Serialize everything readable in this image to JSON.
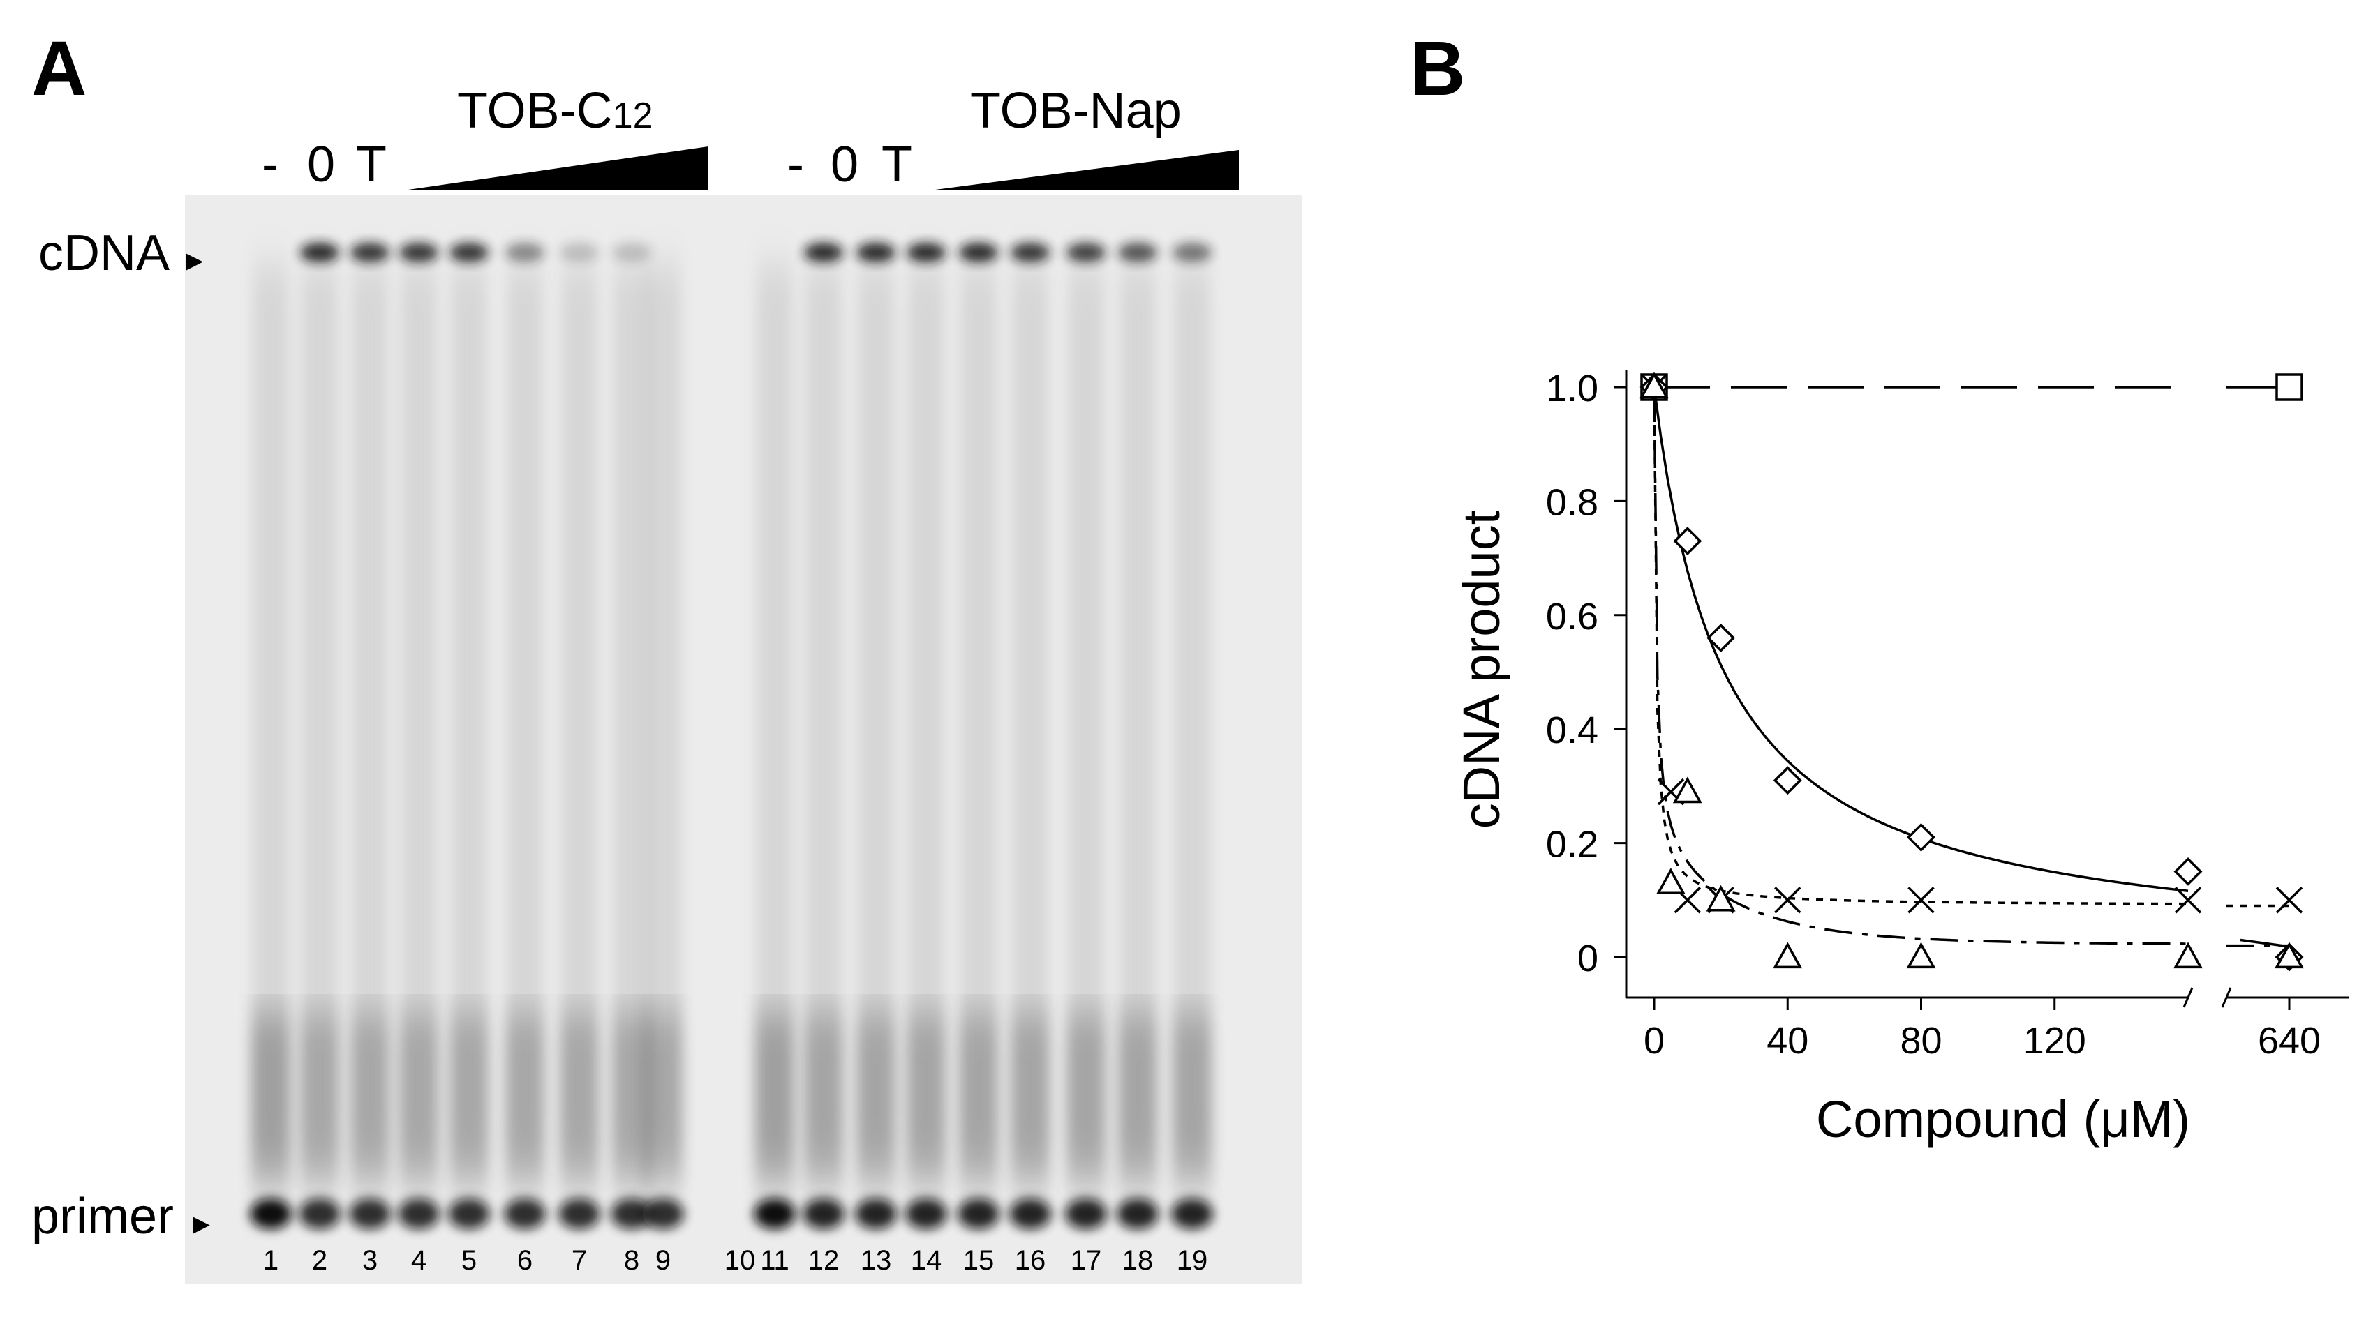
{
  "panel_a": {
    "label": "A",
    "groups": [
      {
        "title_main": "TOB-C",
        "title_sub": "12",
        "controls": [
          "-",
          "0",
          "T"
        ]
      },
      {
        "title_main": "TOB-Nap",
        "title_sub": "",
        "controls": [
          "-",
          "0",
          "T"
        ]
      }
    ],
    "markers": {
      "cdna": "cDNA",
      "primer": "primer"
    },
    "lanes": [
      "1",
      "2",
      "3",
      "4",
      "5",
      "6",
      "7",
      "8",
      "9",
      "10",
      "11",
      "12",
      "13",
      "14",
      "15",
      "16",
      "17",
      "18",
      "19"
    ],
    "cdna_band_intensity": [
      0,
      0.9,
      0.85,
      0.85,
      0.85,
      0.45,
      0.2,
      0.2,
      0,
      0,
      0,
      0.9,
      0.9,
      0.9,
      0.9,
      0.85,
      0.8,
      0.7,
      0.55
    ],
    "primer_band_intensity": [
      1.0,
      0.85,
      0.85,
      0.85,
      0.85,
      0.85,
      0.85,
      0.85,
      0.85,
      0,
      1.0,
      0.9,
      0.9,
      0.9,
      0.9,
      0.9,
      0.9,
      0.9,
      0.9
    ]
  },
  "panel_b": {
    "label": "B",
    "chart_data": {
      "type": "scatter",
      "xlabel": "Compound (μM)",
      "ylabel": "cDNA product",
      "xticks": [
        "0",
        "40",
        "80",
        "120",
        "640"
      ],
      "yticks": [
        "0",
        "0.2",
        "0.4",
        "0.6",
        "0.8",
        "1.0"
      ],
      "ylim": [
        0,
        1.0
      ],
      "x_axis_break": true,
      "series": [
        {
          "marker": "square",
          "line_style": "long-dash",
          "points": [
            [
              0,
              1.0
            ],
            [
              640,
              1.0
            ]
          ]
        },
        {
          "marker": "diamond",
          "line_style": "solid",
          "points": [
            [
              0,
              1.0
            ],
            [
              10,
              0.73
            ],
            [
              20,
              0.56
            ],
            [
              40,
              0.31
            ],
            [
              80,
              0.21
            ],
            [
              160,
              0.15
            ],
            [
              640,
              0.0
            ]
          ]
        },
        {
          "marker": "x",
          "line_style": "dotted",
          "points": [
            [
              0,
              1.0
            ],
            [
              5,
              0.29
            ],
            [
              10,
              0.1
            ],
            [
              20,
              0.1
            ],
            [
              40,
              0.1
            ],
            [
              80,
              0.1
            ],
            [
              160,
              0.1
            ],
            [
              640,
              0.1
            ]
          ]
        },
        {
          "marker": "triangle",
          "line_style": "dash-dot",
          "points": [
            [
              0,
              1.0
            ],
            [
              5,
              0.13
            ],
            [
              10,
              0.29
            ],
            [
              20,
              0.1
            ],
            [
              40,
              0.0
            ],
            [
              80,
              0.0
            ],
            [
              160,
              0.0
            ],
            [
              640,
              0.0
            ]
          ]
        }
      ]
    }
  }
}
